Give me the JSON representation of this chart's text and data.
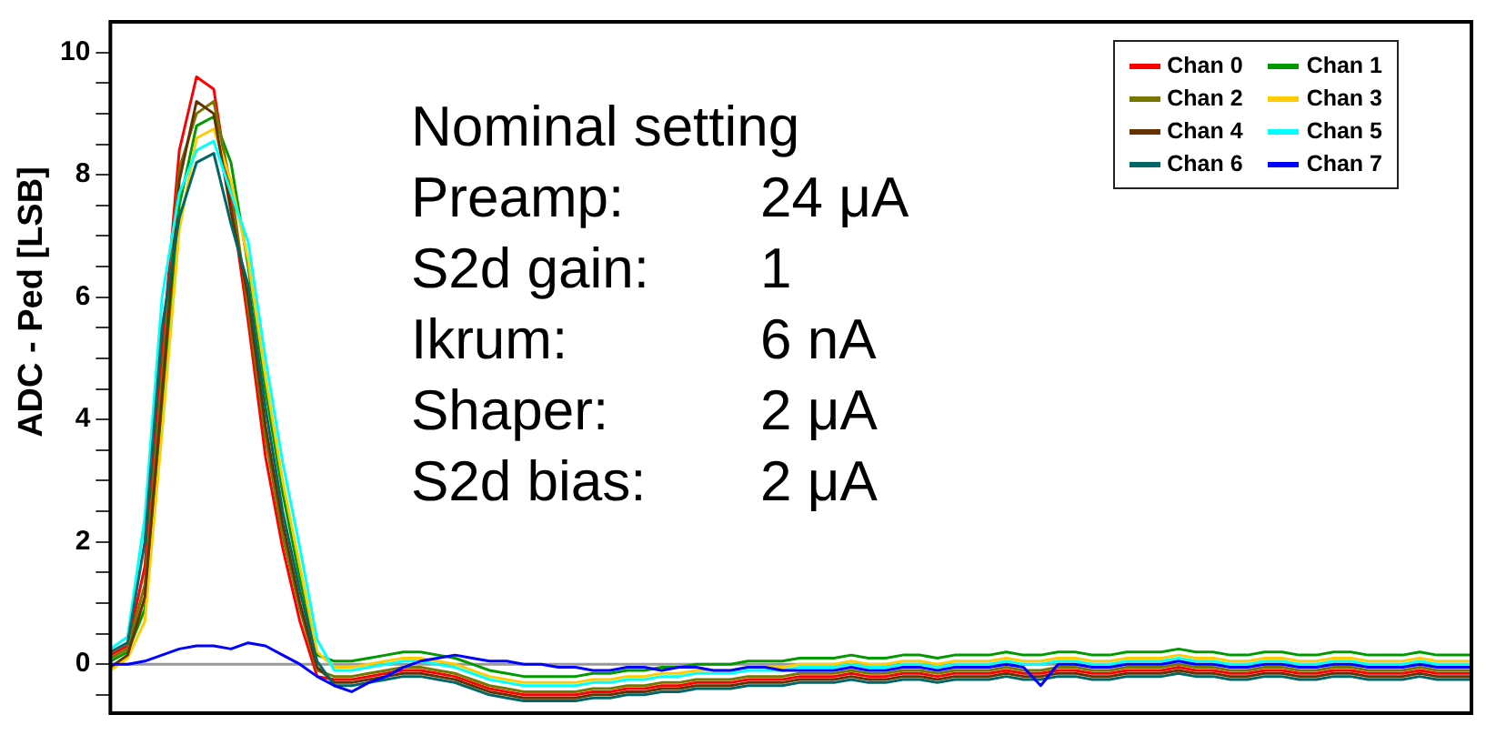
{
  "chart_data": {
    "type": "line",
    "ylabel": "ADC - Ped [LSB]",
    "categories": [
      null,
      null,
      null,
      null,
      null,
      null,
      null,
      null,
      null,
      null,
      null,
      null,
      null,
      null,
      null,
      null,
      null,
      null,
      null,
      null,
      null,
      null,
      null,
      null,
      null,
      null,
      null,
      null,
      null,
      null,
      null,
      null,
      null,
      null,
      null,
      null,
      null,
      null,
      null,
      null,
      null,
      null,
      null,
      null,
      null,
      null,
      null,
      null,
      null,
      null,
      null,
      null,
      null,
      null,
      null,
      null,
      null,
      null,
      null,
      null,
      null,
      null,
      null,
      null,
      null,
      null,
      null,
      null,
      null,
      null,
      null,
      null,
      null,
      null,
      null,
      null,
      null,
      null,
      null,
      null
    ],
    "ylim": [
      -0.8,
      10.5
    ],
    "yticks": [
      {
        "value": -0.5,
        "label": null
      },
      0,
      {
        "value": 0.5,
        "label": null
      },
      {
        "value": 1,
        "label": null
      },
      {
        "value": 1.5,
        "label": null
      },
      2,
      {
        "value": 2.5,
        "label": null
      },
      {
        "value": 3,
        "label": null
      },
      {
        "value": 3.5,
        "label": null
      },
      4,
      {
        "value": 4.5,
        "label": null
      },
      {
        "value": 5,
        "label": null
      },
      {
        "value": 5.5,
        "label": null
      },
      6,
      {
        "value": 6.5,
        "label": null
      },
      {
        "value": 7,
        "label": null
      },
      {
        "value": 7.5,
        "label": null
      },
      8,
      {
        "value": 8.5,
        "label": null
      },
      {
        "value": 9,
        "label": null
      },
      {
        "value": 9.5,
        "label": null
      },
      10
    ],
    "tick_labels": "y",
    "grid": false,
    "legend": "top right",
    "marker": "none",
    "line_style": "solid",
    "ref_lines": [
      {
        "axis": "y",
        "value": 0,
        "color": "#999999"
      }
    ],
    "annotations": [
      "Nominal setting",
      "Preamp:    24 μA",
      "S2d gain:   1",
      "Ikrum:    6 nA",
      "Shaper:    2 μA",
      "S2d bias:   2 μA"
    ],
    "series": [
      {
        "name": "Chan 0",
        "color": "#ff0000",
        "values": [
          0.15,
          0.3,
          1.6,
          5.1,
          8.4,
          9.6,
          9.4,
          7.6,
          5.6,
          3.4,
          1.9,
          0.7,
          -0.2,
          -0.25,
          -0.25,
          -0.2,
          -0.15,
          -0.1,
          -0.1,
          -0.15,
          -0.2,
          -0.3,
          -0.4,
          -0.45,
          -0.5,
          -0.5,
          -0.5,
          -0.5,
          -0.45,
          -0.45,
          -0.4,
          -0.4,
          -0.35,
          -0.35,
          -0.3,
          -0.3,
          -0.3,
          -0.25,
          -0.25,
          -0.25,
          -0.2,
          -0.2,
          -0.2,
          -0.15,
          -0.2,
          -0.2,
          -0.15,
          -0.15,
          -0.2,
          -0.15,
          -0.15,
          -0.15,
          -0.1,
          -0.15,
          -0.15,
          -0.1,
          -0.1,
          -0.15,
          -0.15,
          -0.1,
          -0.1,
          -0.1,
          -0.05,
          -0.1,
          -0.1,
          -0.15,
          -0.15,
          -0.1,
          -0.1,
          -0.15,
          -0.15,
          -0.1,
          -0.1,
          -0.15,
          -0.15,
          -0.15,
          -0.1,
          -0.15,
          -0.15,
          -0.15
        ]
      },
      {
        "name": "Chan 1",
        "color": "#009900",
        "values": [
          0.05,
          0.2,
          0.9,
          4.1,
          7.5,
          8.8,
          8.95,
          8.2,
          6.5,
          4.5,
          2.8,
          1.4,
          0.15,
          0.05,
          0.05,
          0.1,
          0.15,
          0.2,
          0.2,
          0.15,
          0.1,
          0,
          -0.1,
          -0.15,
          -0.2,
          -0.2,
          -0.2,
          -0.2,
          -0.15,
          -0.15,
          -0.1,
          -0.1,
          -0.05,
          -0.05,
          0,
          0,
          0,
          0.05,
          0.05,
          0.05,
          0.1,
          0.1,
          0.1,
          0.15,
          0.1,
          0.1,
          0.15,
          0.15,
          0.1,
          0.15,
          0.15,
          0.15,
          0.2,
          0.15,
          0.15,
          0.2,
          0.2,
          0.15,
          0.15,
          0.2,
          0.2,
          0.2,
          0.25,
          0.2,
          0.2,
          0.15,
          0.15,
          0.2,
          0.2,
          0.15,
          0.15,
          0.2,
          0.2,
          0.15,
          0.15,
          0.15,
          0.2,
          0.15,
          0.15,
          0.15
        ]
      },
      {
        "name": "Chan 2",
        "color": "#777700",
        "values": [
          0.1,
          0.25,
          1.3,
          4.7,
          8.1,
          9.0,
          9.2,
          7.8,
          5.8,
          3.7,
          2.1,
          0.9,
          -0.1,
          -0.2,
          -0.2,
          -0.15,
          -0.1,
          -0.05,
          -0.05,
          -0.1,
          -0.15,
          -0.25,
          -0.35,
          -0.4,
          -0.45,
          -0.45,
          -0.45,
          -0.45,
          -0.4,
          -0.4,
          -0.35,
          -0.35,
          -0.3,
          -0.3,
          -0.25,
          -0.25,
          -0.25,
          -0.2,
          -0.2,
          -0.2,
          -0.15,
          -0.15,
          -0.15,
          -0.1,
          -0.15,
          -0.15,
          -0.1,
          -0.1,
          -0.15,
          -0.1,
          -0.1,
          -0.1,
          -0.05,
          -0.1,
          -0.1,
          -0.05,
          -0.05,
          -0.1,
          -0.1,
          -0.05,
          -0.05,
          -0.05,
          0,
          -0.05,
          -0.05,
          -0.1,
          -0.1,
          -0.05,
          -0.05,
          -0.1,
          -0.1,
          -0.05,
          -0.05,
          -0.1,
          -0.1,
          -0.1,
          -0.05,
          -0.1,
          -0.1,
          -0.1
        ]
      },
      {
        "name": "Chan 3",
        "color": "#ffcc00",
        "values": [
          -0.1,
          0.1,
          0.7,
          3.8,
          7.1,
          8.6,
          8.75,
          7.9,
          6.6,
          4.7,
          3.0,
          1.6,
          0.2,
          -0.05,
          -0.05,
          0,
          0.05,
          0.1,
          0.1,
          0.05,
          0,
          -0.1,
          -0.2,
          -0.25,
          -0.3,
          -0.3,
          -0.3,
          -0.3,
          -0.25,
          -0.25,
          -0.2,
          -0.2,
          -0.15,
          -0.15,
          -0.1,
          -0.1,
          -0.1,
          -0.05,
          -0.05,
          -0.05,
          0,
          0,
          0,
          0.05,
          0,
          0,
          0.05,
          0.05,
          0,
          0.05,
          0.05,
          0.05,
          0.1,
          0.05,
          0.05,
          0.1,
          0.1,
          0.05,
          0.05,
          0.1,
          0.1,
          0.1,
          0.15,
          0.1,
          0.1,
          0.05,
          0.05,
          0.1,
          0.1,
          0.05,
          0.05,
          0.1,
          0.1,
          0.05,
          0.05,
          0.05,
          0.1,
          0.05,
          0.05,
          0.05
        ]
      },
      {
        "name": "Chan 4",
        "color": "#663300",
        "values": [
          -0.05,
          0.15,
          1.1,
          4.4,
          7.9,
          9.2,
          9.0,
          7.4,
          6.0,
          3.9,
          2.3,
          1.0,
          -0.05,
          -0.3,
          -0.3,
          -0.25,
          -0.2,
          -0.15,
          -0.15,
          -0.2,
          -0.25,
          -0.35,
          -0.45,
          -0.5,
          -0.55,
          -0.55,
          -0.55,
          -0.55,
          -0.5,
          -0.5,
          -0.45,
          -0.45,
          -0.4,
          -0.4,
          -0.35,
          -0.35,
          -0.35,
          -0.3,
          -0.3,
          -0.3,
          -0.25,
          -0.25,
          -0.25,
          -0.2,
          -0.25,
          -0.25,
          -0.2,
          -0.2,
          -0.25,
          -0.2,
          -0.2,
          -0.2,
          -0.15,
          -0.2,
          -0.2,
          -0.15,
          -0.15,
          -0.2,
          -0.2,
          -0.15,
          -0.15,
          -0.15,
          -0.1,
          -0.15,
          -0.15,
          -0.2,
          -0.2,
          -0.15,
          -0.15,
          -0.2,
          -0.2,
          -0.15,
          -0.15,
          -0.2,
          -0.2,
          -0.2,
          -0.15,
          -0.2,
          -0.2,
          -0.2
        ]
      },
      {
        "name": "Chan 5",
        "color": "#00ffff",
        "values": [
          0.25,
          0.45,
          2.4,
          6.0,
          7.7,
          8.4,
          8.55,
          7.7,
          6.9,
          5.0,
          3.3,
          1.9,
          0.4,
          -0.1,
          -0.1,
          -0.05,
          0,
          0.05,
          0.05,
          0,
          -0.05,
          -0.15,
          -0.25,
          -0.3,
          -0.35,
          -0.35,
          -0.35,
          -0.35,
          -0.3,
          -0.3,
          -0.25,
          -0.25,
          -0.2,
          -0.2,
          -0.15,
          -0.15,
          -0.15,
          -0.1,
          -0.1,
          -0.1,
          -0.05,
          -0.05,
          -0.05,
          0,
          -0.05,
          -0.05,
          0,
          0,
          -0.05,
          0,
          0,
          0,
          0.05,
          0,
          0,
          0.05,
          0.05,
          0,
          0,
          0.05,
          0.05,
          0.05,
          0.1,
          0.05,
          0.05,
          0,
          0,
          0.05,
          0.05,
          0,
          0,
          0.05,
          0.05,
          0,
          0,
          0,
          0.05,
          0,
          0,
          0
        ]
      },
      {
        "name": "Chan 6",
        "color": "#006666",
        "values": [
          0.2,
          0.35,
          2.0,
          5.5,
          7.3,
          8.2,
          8.35,
          7.2,
          6.2,
          4.2,
          2.5,
          1.2,
          0.05,
          -0.35,
          -0.35,
          -0.3,
          -0.25,
          -0.2,
          -0.2,
          -0.25,
          -0.3,
          -0.4,
          -0.5,
          -0.55,
          -0.6,
          -0.6,
          -0.6,
          -0.6,
          -0.55,
          -0.55,
          -0.5,
          -0.5,
          -0.45,
          -0.45,
          -0.4,
          -0.4,
          -0.4,
          -0.35,
          -0.35,
          -0.35,
          -0.3,
          -0.3,
          -0.3,
          -0.25,
          -0.3,
          -0.3,
          -0.25,
          -0.25,
          -0.3,
          -0.25,
          -0.25,
          -0.25,
          -0.2,
          -0.25,
          -0.25,
          -0.2,
          -0.2,
          -0.25,
          -0.25,
          -0.2,
          -0.2,
          -0.2,
          -0.15,
          -0.2,
          -0.2,
          -0.25,
          -0.25,
          -0.2,
          -0.2,
          -0.25,
          -0.25,
          -0.2,
          -0.2,
          -0.25,
          -0.25,
          -0.25,
          -0.2,
          -0.25,
          -0.25,
          -0.25
        ]
      },
      {
        "name": "Chan 7",
        "color": "#0000ff",
        "values": [
          0,
          0,
          0.05,
          0.15,
          0.25,
          0.3,
          0.3,
          0.25,
          0.35,
          0.3,
          0.15,
          0,
          -0.2,
          -0.35,
          -0.45,
          -0.3,
          -0.2,
          -0.05,
          0.05,
          0.1,
          0.15,
          0.1,
          0.05,
          0.05,
          0,
          0,
          -0.05,
          -0.05,
          -0.1,
          -0.1,
          -0.05,
          -0.05,
          -0.1,
          -0.05,
          -0.05,
          -0.1,
          -0.1,
          -0.05,
          -0.05,
          -0.1,
          -0.1,
          -0.1,
          -0.1,
          -0.05,
          -0.1,
          -0.1,
          -0.05,
          -0.05,
          -0.1,
          -0.05,
          -0.05,
          -0.05,
          0,
          -0.05,
          -0.35,
          0,
          0,
          -0.05,
          -0.05,
          0,
          0,
          0,
          0.05,
          0,
          0,
          -0.05,
          -0.05,
          0,
          0,
          -0.05,
          -0.05,
          0,
          0,
          -0.05,
          -0.05,
          -0.05,
          0,
          -0.05,
          -0.05,
          -0.05
        ]
      }
    ]
  }
}
